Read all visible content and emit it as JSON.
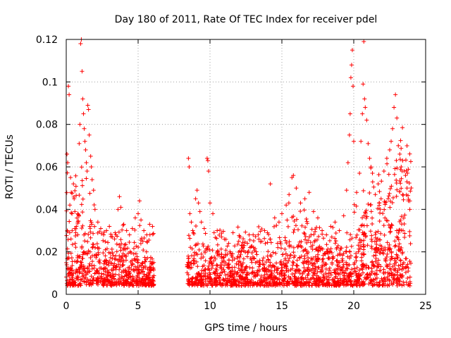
{
  "chart_data": {
    "type": "scatter",
    "title": "Day 180 of 2011, Rate Of TEC Index for receiver pdel",
    "xlabel": "GPS time / hours",
    "ylabel": "ROTI / TECUs",
    "xlim": [
      0,
      25
    ],
    "ylim": [
      0,
      0.12
    ],
    "grid": true,
    "marker": "+",
    "color": "#ff0000",
    "x_ticks": [
      0,
      5,
      10,
      15,
      20,
      25
    ],
    "x_tick_labels": [
      "0",
      "5",
      "10",
      "15",
      "20",
      "25"
    ],
    "y_ticks": [
      0,
      0.02,
      0.04,
      0.06,
      0.08,
      0.1,
      0.12
    ],
    "y_tick_labels": [
      "0",
      "0.02",
      "0.04",
      "0.06",
      "0.08",
      "0.1",
      "0.12"
    ],
    "data_gap_hours": [
      6.1,
      8.4
    ],
    "series": [
      {
        "name": "ROTI",
        "points": [
          [
            0.05,
            0.066
          ],
          [
            0.1,
            0.062
          ],
          [
            0.15,
            0.098
          ],
          [
            0.2,
            0.094
          ],
          [
            0.25,
            0.042
          ],
          [
            0.3,
            0.055
          ],
          [
            0.35,
            0.048
          ],
          [
            0.4,
            0.038
          ],
          [
            0.5,
            0.052
          ],
          [
            0.55,
            0.045
          ],
          [
            0.6,
            0.039
          ],
          [
            0.7,
            0.032
          ],
          [
            0.8,
            0.028
          ],
          [
            0.9,
            0.071
          ],
          [
            0.95,
            0.08
          ],
          [
            1.0,
            0.118
          ],
          [
            1.05,
            0.12
          ],
          [
            1.1,
            0.105
          ],
          [
            1.15,
            0.092
          ],
          [
            1.2,
            0.085
          ],
          [
            1.25,
            0.078
          ],
          [
            1.3,
            0.072
          ],
          [
            1.35,
            0.068
          ],
          [
            1.4,
            0.062
          ],
          [
            1.45,
            0.058
          ],
          [
            1.5,
            0.089
          ],
          [
            1.55,
            0.087
          ],
          [
            1.6,
            0.075
          ],
          [
            1.7,
            0.065
          ],
          [
            1.75,
            0.06
          ],
          [
            1.8,
            0.054
          ],
          [
            1.9,
            0.049
          ],
          [
            2.0,
            0.04
          ],
          [
            2.2,
            0.034
          ],
          [
            2.4,
            0.031
          ],
          [
            2.6,
            0.028
          ],
          [
            2.8,
            0.03
          ],
          [
            3.0,
            0.032
          ],
          [
            3.2,
            0.027
          ],
          [
            3.4,
            0.029
          ],
          [
            3.6,
            0.04
          ],
          [
            3.7,
            0.046
          ],
          [
            3.8,
            0.041
          ],
          [
            4.0,
            0.033
          ],
          [
            4.2,
            0.03
          ],
          [
            4.4,
            0.028
          ],
          [
            4.6,
            0.031
          ],
          [
            4.8,
            0.036
          ],
          [
            5.0,
            0.038
          ],
          [
            5.1,
            0.044
          ],
          [
            5.2,
            0.035
          ],
          [
            5.4,
            0.03
          ],
          [
            5.6,
            0.028
          ],
          [
            5.8,
            0.033
          ],
          [
            6.0,
            0.032
          ],
          [
            8.5,
            0.064
          ],
          [
            8.55,
            0.06
          ],
          [
            8.6,
            0.038
          ],
          [
            8.7,
            0.034
          ],
          [
            8.8,
            0.03
          ],
          [
            9.0,
            0.045
          ],
          [
            9.1,
            0.049
          ],
          [
            9.2,
            0.043
          ],
          [
            9.3,
            0.039
          ],
          [
            9.4,
            0.034
          ],
          [
            9.6,
            0.031
          ],
          [
            9.8,
            0.064
          ],
          [
            9.85,
            0.063
          ],
          [
            9.9,
            0.058
          ],
          [
            10.0,
            0.043
          ],
          [
            10.2,
            0.038
          ],
          [
            10.5,
            0.03
          ],
          [
            10.8,
            0.027
          ],
          [
            11.0,
            0.026
          ],
          [
            11.3,
            0.024
          ],
          [
            11.6,
            0.029
          ],
          [
            12.0,
            0.025
          ],
          [
            12.3,
            0.022
          ],
          [
            12.6,
            0.024
          ],
          [
            13.0,
            0.028
          ],
          [
            13.4,
            0.026
          ],
          [
            13.8,
            0.03
          ],
          [
            14.0,
            0.029
          ],
          [
            14.2,
            0.052
          ],
          [
            14.5,
            0.036
          ],
          [
            14.8,
            0.034
          ],
          [
            15.0,
            0.038
          ],
          [
            15.3,
            0.042
          ],
          [
            15.5,
            0.047
          ],
          [
            15.7,
            0.055
          ],
          [
            15.8,
            0.056
          ],
          [
            16.0,
            0.05
          ],
          [
            16.3,
            0.043
          ],
          [
            16.6,
            0.045
          ],
          [
            16.9,
            0.048
          ],
          [
            17.2,
            0.039
          ],
          [
            17.5,
            0.036
          ],
          [
            17.8,
            0.03
          ],
          [
            18.1,
            0.028
          ],
          [
            18.4,
            0.032
          ],
          [
            18.7,
            0.034
          ],
          [
            19.0,
            0.03
          ],
          [
            19.3,
            0.037
          ],
          [
            19.5,
            0.049
          ],
          [
            19.6,
            0.062
          ],
          [
            19.7,
            0.075
          ],
          [
            19.75,
            0.085
          ],
          [
            19.8,
            0.102
          ],
          [
            19.85,
            0.108
          ],
          [
            19.9,
            0.115
          ],
          [
            19.95,
            0.098
          ],
          [
            20.0,
            0.072
          ],
          [
            20.2,
            0.048
          ],
          [
            20.4,
            0.057
          ],
          [
            20.5,
            0.072
          ],
          [
            20.6,
            0.085
          ],
          [
            20.65,
            0.099
          ],
          [
            20.7,
            0.119
          ],
          [
            20.75,
            0.092
          ],
          [
            20.8,
            0.088
          ],
          [
            20.9,
            0.082
          ],
          [
            21.0,
            0.071
          ],
          [
            21.1,
            0.064
          ],
          [
            21.2,
            0.06
          ],
          [
            21.3,
            0.057
          ],
          [
            21.5,
            0.047
          ],
          [
            21.7,
            0.052
          ],
          [
            21.9,
            0.045
          ],
          [
            22.1,
            0.058
          ],
          [
            22.3,
            0.064
          ],
          [
            22.5,
            0.068
          ],
          [
            22.6,
            0.072
          ],
          [
            22.7,
            0.078
          ],
          [
            22.8,
            0.088
          ],
          [
            22.9,
            0.094
          ],
          [
            23.0,
            0.083
          ],
          [
            23.1,
            0.07
          ],
          [
            23.2,
            0.066
          ],
          [
            23.3,
            0.06
          ],
          [
            23.4,
            0.063
          ],
          [
            23.5,
            0.058
          ],
          [
            23.6,
            0.056
          ],
          [
            23.7,
            0.053
          ],
          [
            23.8,
            0.044
          ],
          [
            23.9,
            0.04
          ]
        ]
      }
    ]
  }
}
